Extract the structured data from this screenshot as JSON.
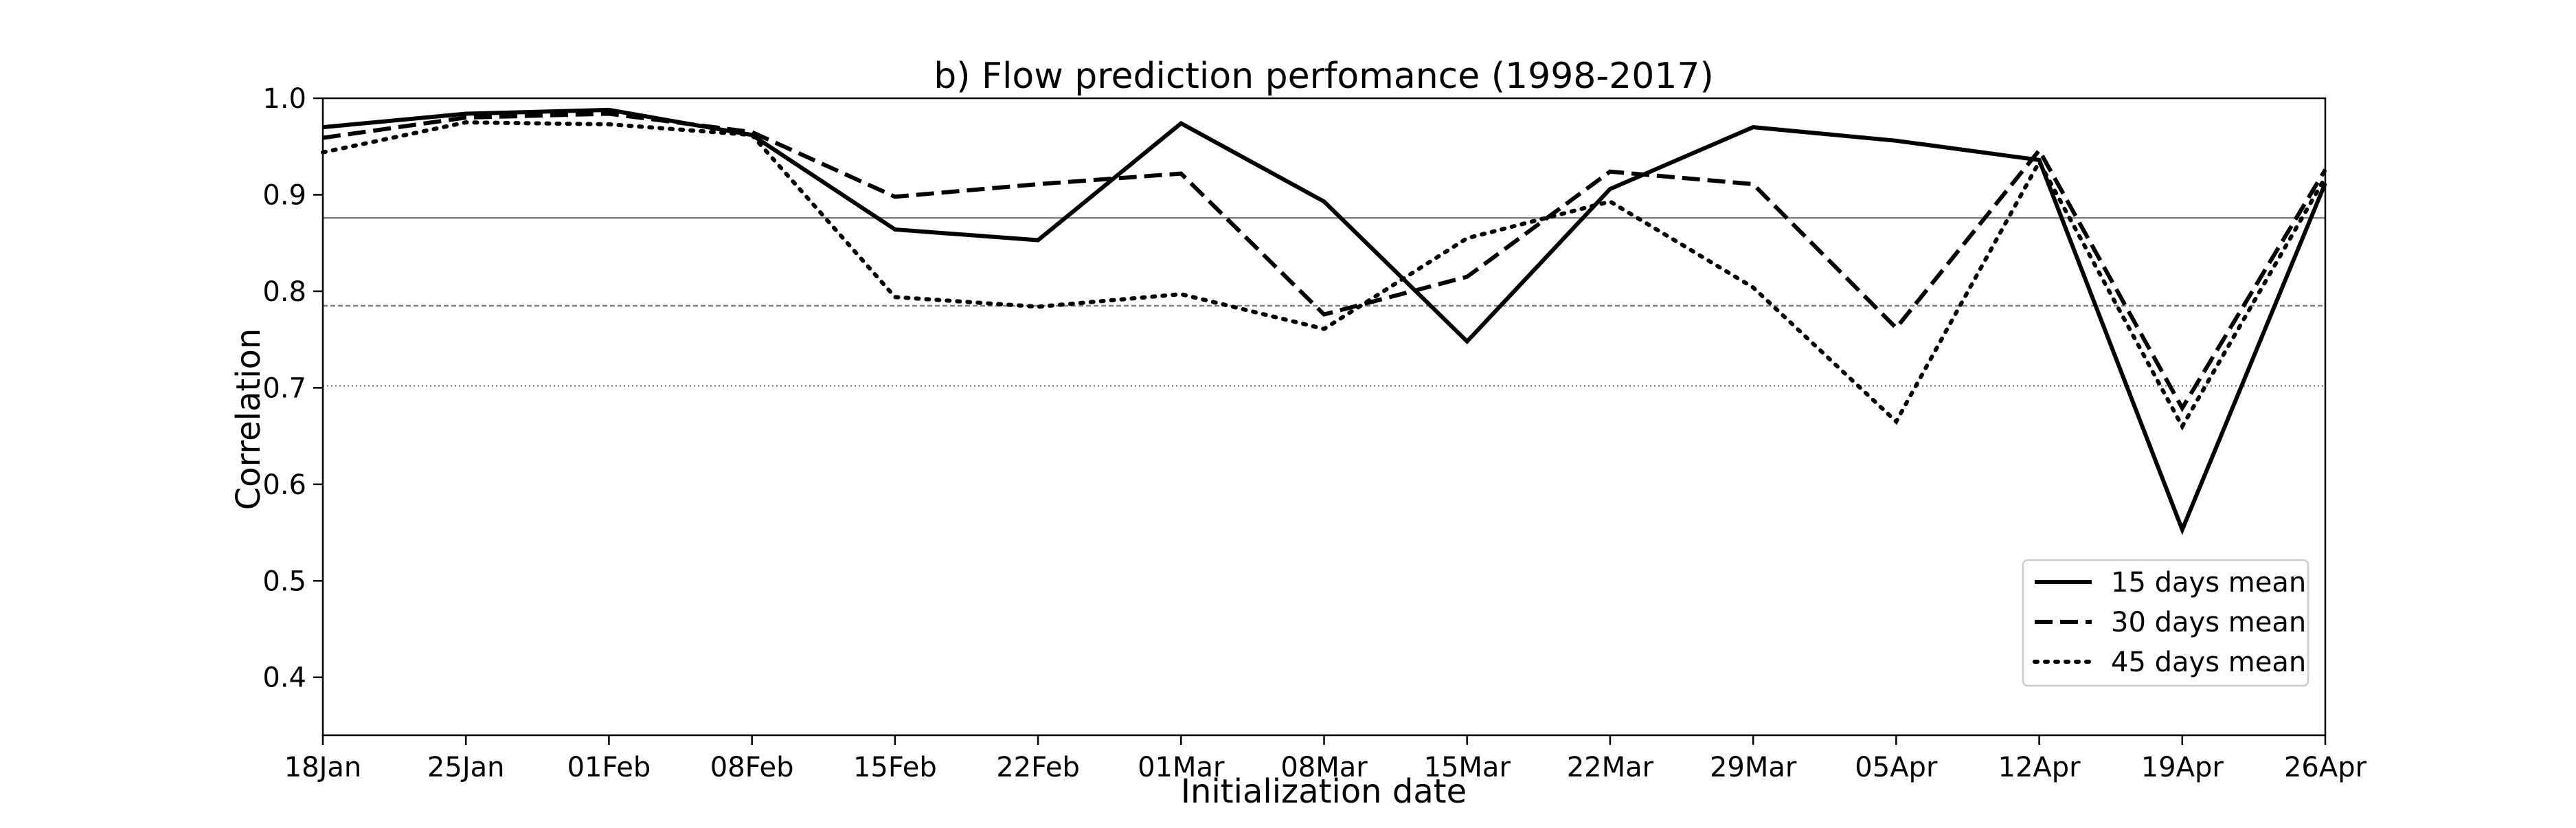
{
  "chart_data": {
    "type": "line",
    "title": "b) Flow prediction perfomance (1998-2017)",
    "xlabel": "Initialization date",
    "ylabel": "Correlation",
    "x": [
      "18Jan",
      "25Jan",
      "01Feb",
      "08Feb",
      "15Feb",
      "22Feb",
      "01Mar",
      "08Mar",
      "15Mar",
      "22Mar",
      "29Mar",
      "05Apr",
      "12Apr",
      "19Apr",
      "26Apr"
    ],
    "ylim": [
      0.34,
      1.0
    ],
    "yticks": [
      "0.4",
      "0.5",
      "0.6",
      "0.7",
      "0.8",
      "0.9",
      "1.0"
    ],
    "grid": false,
    "legend_position": "lower-right",
    "series": [
      {
        "name": "15 days mean",
        "linestyle": "solid",
        "values": [
          0.97,
          0.984,
          0.988,
          0.962,
          0.864,
          0.853,
          0.974,
          0.893,
          0.748,
          0.906,
          0.97,
          0.956,
          0.936,
          0.553,
          0.912
        ]
      },
      {
        "name": "30 days mean",
        "linestyle": "dashed",
        "values": [
          0.959,
          0.98,
          0.984,
          0.965,
          0.898,
          0.911,
          0.922,
          0.776,
          0.815,
          0.924,
          0.911,
          0.762,
          0.946,
          0.679,
          0.926
        ]
      },
      {
        "name": "45 days mean",
        "linestyle": "dotted",
        "values": [
          0.944,
          0.975,
          0.973,
          0.962,
          0.794,
          0.784,
          0.797,
          0.761,
          0.855,
          0.893,
          0.804,
          0.665,
          0.934,
          0.66,
          0.918
        ]
      }
    ],
    "reference_lines": [
      {
        "y": 0.876,
        "style": "solid"
      },
      {
        "y": 0.785,
        "style": "dashed"
      },
      {
        "y": 0.702,
        "style": "dotted"
      }
    ],
    "colors": {
      "lines": "#000000",
      "reference": "#808080"
    }
  }
}
